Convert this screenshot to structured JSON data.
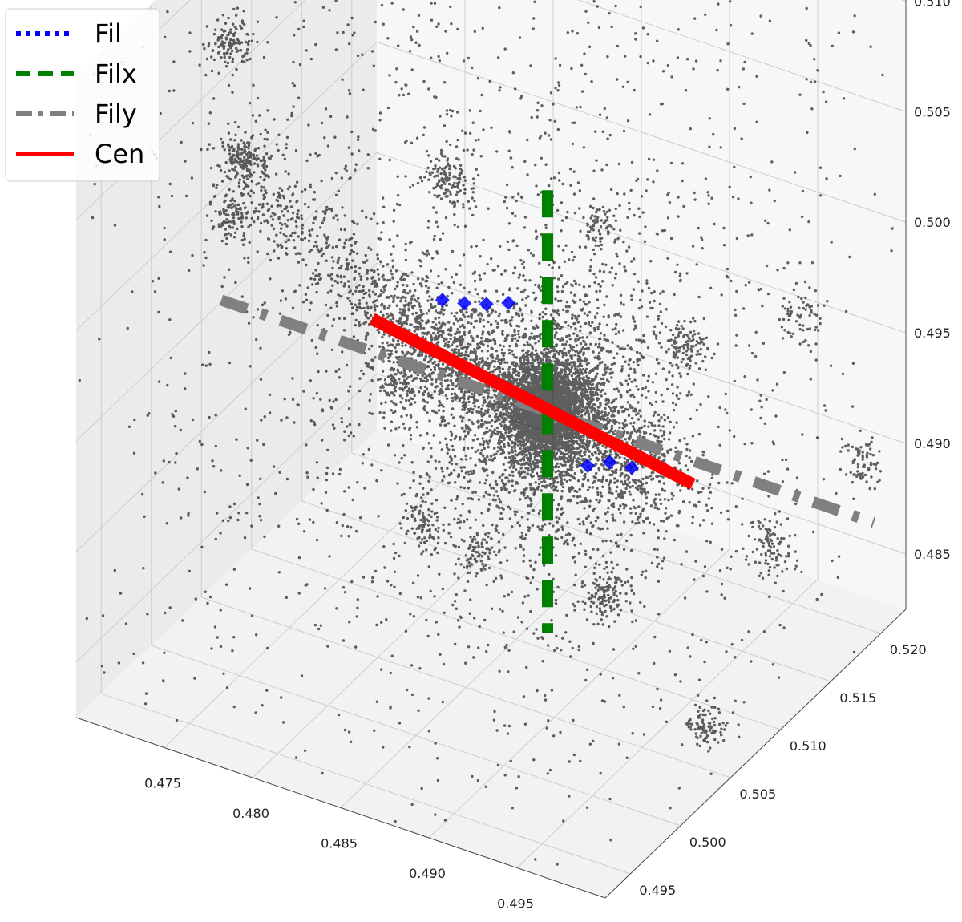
{
  "chart_data": {
    "type": "scatter",
    "projection": "3d",
    "title": "",
    "grid": true,
    "legend_position": "top-left",
    "axes": {
      "x": {
        "label": "",
        "range": [
          0.47,
          0.5
        ],
        "ticks": [
          "0.475",
          "0.480",
          "0.485",
          "0.490",
          "0.495"
        ]
      },
      "y": {
        "label": "",
        "range": [
          0.4925,
          0.5225
        ],
        "ticks": [
          "0.495",
          "0.500",
          "0.505",
          "0.510",
          "0.515",
          "0.520"
        ]
      },
      "z": {
        "label": "",
        "range": [
          0.4825,
          0.5115
        ],
        "ticks": [
          "0.485",
          "0.490",
          "0.495",
          "0.500",
          "0.505",
          "0.510"
        ]
      }
    },
    "center": [
      0.4865,
      0.5105,
      0.493
    ],
    "series": [
      {
        "name": "Fil",
        "style": "dotted",
        "color": "#0000ff",
        "marker": "diamond",
        "points": [
          [
            0.4865,
            0.5,
            0.5026
          ],
          [
            0.4865,
            0.5022,
            0.5015
          ],
          [
            0.4865,
            0.5044,
            0.5005
          ],
          [
            0.4865,
            0.5066,
            0.4996
          ],
          [
            0.4865,
            0.5145,
            0.4888
          ],
          [
            0.4865,
            0.5167,
            0.488
          ],
          [
            0.4865,
            0.5189,
            0.4868
          ]
        ]
      },
      {
        "name": "Filx",
        "style": "dashed",
        "color": "#008000",
        "start": [
          0.4865,
          0.5105,
          0.503
        ],
        "end": [
          0.4865,
          0.5105,
          0.483
        ]
      },
      {
        "name": "Fily",
        "style": "dashdot",
        "color": "#808080",
        "start": [
          0.468,
          0.5105,
          0.493
        ],
        "end": [
          0.505,
          0.5105,
          0.493
        ]
      },
      {
        "name": "Cen",
        "style": "solid",
        "color": "#ff0000",
        "start": [
          0.4865,
          0.493,
          0.5048
        ],
        "end": [
          0.4865,
          0.525,
          0.4834
        ]
      }
    ],
    "particles": {
      "color": "#000000",
      "approx_count": 12000
    }
  }
}
